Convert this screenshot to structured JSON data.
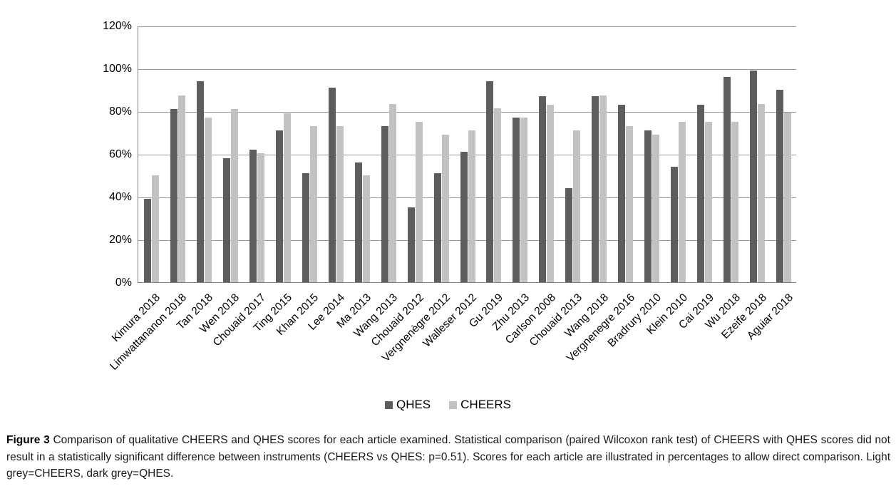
{
  "figure_caption": {
    "label": "Figure 3",
    "text": " Comparison of qualitative CHEERS and QHES scores for each article examined. Statistical comparison (paired Wilcoxon rank test) of CHEERS with QHES scores did not result in a statistically significant difference between instruments (CHEERS vs QHES: p=0.51). Scores for each article are illustrated in percentages to allow direct comparison. Light grey=CHEERS, dark grey=QHES."
  },
  "chart_data": {
    "type": "bar",
    "title": "",
    "xlabel": "",
    "ylabel": "",
    "ylim": [
      0,
      120
    ],
    "ytick_step": 20,
    "ytick_labels": [
      "0%",
      "20%",
      "40%",
      "60%",
      "80%",
      "100%",
      "120%"
    ],
    "grid": true,
    "legend_position": "bottom-center",
    "axis_color": "#7f7f7f",
    "grid_color": "#999999",
    "categories": [
      "Kimura 2018",
      "Limwattananon 2018",
      "Tan 2018",
      "Wen 2018",
      "Chouaid 2017",
      "Ting 2015",
      "Khan 2015",
      "Lee 2014",
      "Ma 2013",
      "Wang 2013",
      "Chouaid 2012",
      "Vergnenègre 2012",
      "Walleser 2012",
      "Gu 2019",
      "Zhu 2013",
      "Carlson 2008",
      "Chouaid 2013",
      "Wang 2018",
      "Vergnenegre 2016",
      "Bradrury 2010",
      "Klein 2010",
      "Cai 2019",
      "Wu 2018",
      "Ezeife 2018",
      "Aguiar 2018"
    ],
    "series": [
      {
        "name": "QHES",
        "color": "#5d5d5d",
        "values": [
          39,
          81,
          94,
          58,
          62,
          71,
          51,
          91,
          56,
          73,
          35,
          51,
          61,
          94,
          77,
          87,
          44,
          87,
          83,
          71,
          54,
          83,
          96,
          99,
          90
        ]
      },
      {
        "name": "CHEERS",
        "color": "#c2c2c2",
        "values": [
          50,
          87.5,
          77,
          81,
          60.5,
          79,
          73,
          73,
          50,
          83.5,
          75,
          69,
          71,
          81.5,
          77,
          83,
          71,
          87.5,
          73,
          69,
          75,
          75,
          75,
          83.5,
          79.5
        ]
      }
    ]
  }
}
